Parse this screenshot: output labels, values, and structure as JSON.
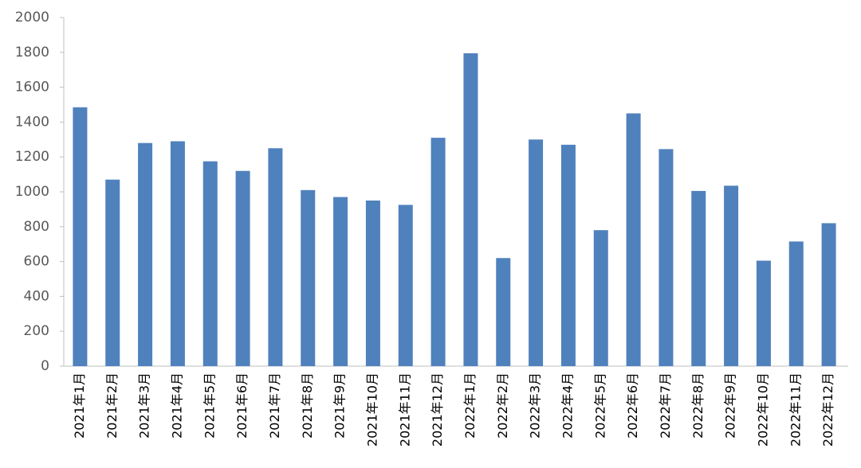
{
  "chart_data": {
    "type": "bar",
    "categories": [
      "2021年1月",
      "2021年2月",
      "2021年3月",
      "2021年4月",
      "2021年5月",
      "2021年6月",
      "2021年7月",
      "2021年8月",
      "2021年9月",
      "2021年10月",
      "2021年11月",
      "2021年12月",
      "2022年1月",
      "2022年2月",
      "2022年3月",
      "2022年4月",
      "2022年5月",
      "2022年6月",
      "2022年7月",
      "2022年8月",
      "2022年9月",
      "2022年10月",
      "2022年11月",
      "2022年12月"
    ],
    "values": [
      1485,
      1070,
      1280,
      1290,
      1175,
      1120,
      1250,
      1010,
      970,
      950,
      925,
      1310,
      1795,
      620,
      1300,
      1270,
      780,
      1450,
      1245,
      1005,
      1035,
      605,
      715,
      820
    ],
    "color": "#4f81bd",
    "ylim": [
      0,
      2000
    ],
    "yticks": [
      0,
      200,
      400,
      600,
      800,
      1000,
      1200,
      1400,
      1600,
      1800,
      2000
    ],
    "grid": false
  }
}
